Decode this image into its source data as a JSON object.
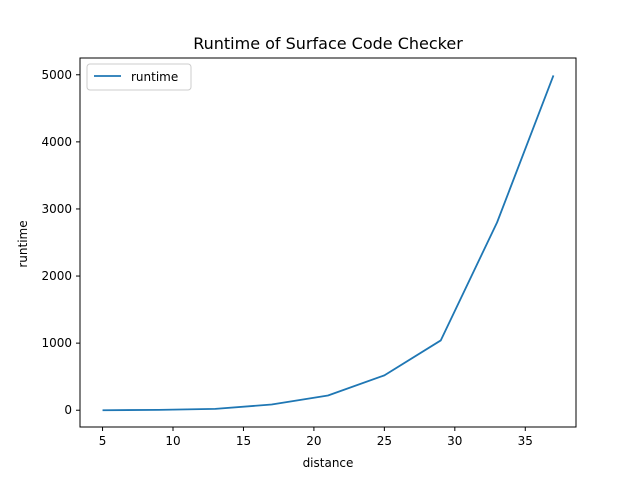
{
  "chart_data": {
    "type": "line",
    "title": "Runtime of Surface Code Checker",
    "xlabel": "distance",
    "ylabel": "runtime",
    "xlim": [
      3.4,
      38.6
    ],
    "ylim": [
      -250,
      5250
    ],
    "xticks": [
      5,
      10,
      15,
      20,
      25,
      30,
      35
    ],
    "yticks": [
      0,
      1000,
      2000,
      3000,
      4000,
      5000
    ],
    "grid": false,
    "legend_position": "upper-left",
    "series": [
      {
        "name": "runtime",
        "color": "#1f77b4",
        "x": [
          5,
          9,
          13,
          17,
          21,
          25,
          29,
          33,
          37
        ],
        "y": [
          0,
          5,
          20,
          85,
          220,
          520,
          1040,
          2800,
          4990
        ]
      }
    ]
  }
}
